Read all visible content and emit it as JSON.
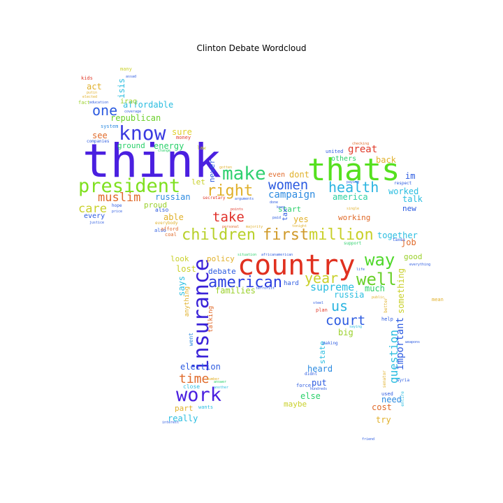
{
  "title": "Clinton Debate Wordcloud",
  "words": [
    {
      "text": "think",
      "color": "#4a1fe0"
    },
    {
      "text": "country",
      "color": "#e0301f"
    },
    {
      "text": "thats",
      "color": "#55e01f"
    },
    {
      "text": "president",
      "color": "#7fe01f"
    },
    {
      "text": "insurance",
      "color": "#3a22d8"
    },
    {
      "text": "work",
      "color": "#4a1fe0"
    },
    {
      "text": "know",
      "color": "#3a3ae0"
    },
    {
      "text": "make",
      "color": "#2fd070"
    },
    {
      "text": "american",
      "color": "#2b3fe0"
    },
    {
      "text": "children",
      "color": "#b8d02a"
    },
    {
      "text": "first",
      "color": "#d09a2a"
    },
    {
      "text": "million",
      "color": "#c9d02a"
    },
    {
      "text": "way",
      "color": "#4fd82a"
    },
    {
      "text": "well",
      "color": "#6ad02a"
    },
    {
      "text": "women",
      "color": "#2b5ae0"
    },
    {
      "text": "health",
      "color": "#2ab4e0"
    },
    {
      "text": "right",
      "color": "#e0b02a"
    },
    {
      "text": "court",
      "color": "#2b5ae0"
    },
    {
      "text": "us",
      "color": "#2ab4e0"
    },
    {
      "text": "year",
      "color": "#c9d02a"
    },
    {
      "text": "time",
      "color": "#e06a2a"
    },
    {
      "text": "take",
      "color": "#e0302a"
    },
    {
      "text": "muslim",
      "color": "#e06a2a"
    },
    {
      "text": "one",
      "color": "#2b5ae0"
    },
    {
      "text": "care",
      "color": "#c9d02a"
    },
    {
      "text": "question",
      "color": "#2abde0"
    },
    {
      "text": "supreme",
      "color": "#2abde0"
    },
    {
      "text": "campaign",
      "color": "#2b8ae0"
    },
    {
      "text": "great",
      "color": "#e03a2a"
    },
    {
      "text": "important",
      "color": "#2b5ae0"
    },
    {
      "text": "affordable",
      "color": "#2abde0"
    },
    {
      "text": "republican",
      "color": "#6ad02a"
    },
    {
      "text": "families",
      "color": "#9ad02a"
    },
    {
      "text": "debate",
      "color": "#2b5ae0"
    },
    {
      "text": "election",
      "color": "#2b5ae0"
    },
    {
      "text": "russian",
      "color": "#2b8ae0"
    },
    {
      "text": "energy",
      "color": "#2ad06a"
    },
    {
      "text": "sure",
      "color": "#e0d02a"
    },
    {
      "text": "see",
      "color": "#e06a2a"
    },
    {
      "text": "ground",
      "color": "#2ad06a"
    },
    {
      "text": "act",
      "color": "#e0b02a"
    },
    {
      "text": "isis",
      "color": "#2abde0"
    },
    {
      "text": "iraq",
      "color": "#9ad02a"
    },
    {
      "text": "policy",
      "color": "#e0b02a"
    },
    {
      "text": "look",
      "color": "#c9d02a"
    },
    {
      "text": "lost",
      "color": "#c9d02a"
    },
    {
      "text": "says",
      "color": "#2abde0"
    },
    {
      "text": "never",
      "color": "#2b5ae0"
    },
    {
      "text": "also",
      "color": "#2b5ae0"
    },
    {
      "text": "proud",
      "color": "#9ad02a"
    },
    {
      "text": "able",
      "color": "#e0b02a"
    },
    {
      "text": "every",
      "color": "#2b5ae0"
    },
    {
      "text": "let",
      "color": "#c9d02a"
    },
    {
      "text": "even",
      "color": "#e06a2a"
    },
    {
      "text": "dont",
      "color": "#e0b02a"
    },
    {
      "text": "im",
      "color": "#2b5ae0"
    },
    {
      "text": "back",
      "color": "#e0b02a"
    },
    {
      "text": "others",
      "color": "#2ad06a"
    },
    {
      "text": "america",
      "color": "#2ad0a0"
    },
    {
      "text": "worked",
      "color": "#2abde0"
    },
    {
      "text": "talk",
      "color": "#2abde0"
    },
    {
      "text": "new",
      "color": "#2b5ae0"
    },
    {
      "text": "start",
      "color": "#2ad06a"
    },
    {
      "text": "tax",
      "color": "#2b5ae0"
    },
    {
      "text": "yes",
      "color": "#e0b02a"
    },
    {
      "text": "working",
      "color": "#e06a2a"
    },
    {
      "text": "job",
      "color": "#e06a2a"
    },
    {
      "text": "together",
      "color": "#2abde0"
    },
    {
      "text": "good",
      "color": "#9ad02a"
    },
    {
      "text": "something",
      "color": "#c9d02a"
    },
    {
      "text": "much",
      "color": "#2ad06a"
    },
    {
      "text": "russia",
      "color": "#2abde0"
    },
    {
      "text": "big",
      "color": "#9ad02a"
    },
    {
      "text": "state",
      "color": "#2abde0"
    },
    {
      "text": "heard",
      "color": "#2b8ae0"
    },
    {
      "text": "put",
      "color": "#2b5ae0"
    },
    {
      "text": "else",
      "color": "#2ad06a"
    },
    {
      "text": "maybe",
      "color": "#c9d02a"
    },
    {
      "text": "cost",
      "color": "#e06a2a"
    },
    {
      "text": "need",
      "color": "#2b8ae0"
    },
    {
      "text": "try",
      "color": "#e0b02a"
    },
    {
      "text": "part",
      "color": "#e0b02a"
    },
    {
      "text": "really",
      "color": "#2abde0"
    },
    {
      "text": "also",
      "color": "#2b5ae0"
    },
    {
      "text": "hard",
      "color": "#2b5ae0"
    },
    {
      "text": "anything",
      "color": "#e0b02a"
    },
    {
      "text": "went",
      "color": "#2b8ae0"
    },
    {
      "text": "talking",
      "color": "#e06a2a"
    },
    {
      "text": "close",
      "color": "#2abde0"
    },
    {
      "text": "many",
      "color": "#c9d02a"
    },
    {
      "text": "kids",
      "color": "#e03a2a"
    },
    {
      "text": "fact",
      "color": "#9ad02a"
    },
    {
      "text": "system",
      "color": "#2b8ae0"
    },
    {
      "text": "companies",
      "color": "#2b5ae0"
    },
    {
      "text": "money",
      "color": "#e03a2a"
    },
    {
      "text": "law",
      "color": "#c9d02a"
    },
    {
      "text": "united",
      "color": "#2b5ae0"
    },
    {
      "text": "secretary",
      "color": "#e03a2a"
    },
    {
      "text": "hope",
      "color": "#2b5ae0"
    },
    {
      "text": "price",
      "color": "#2b5ae0"
    },
    {
      "text": "justice",
      "color": "#2b5ae0"
    },
    {
      "text": "afford",
      "color": "#e06a2a"
    },
    {
      "text": "coal",
      "color": "#e06a2a"
    },
    {
      "text": "everybody",
      "color": "#e0b02a"
    },
    {
      "text": "support",
      "color": "#2ad06a"
    },
    {
      "text": "respect",
      "color": "#2b5ae0"
    },
    {
      "text": "taxes",
      "color": "#2b5ae0"
    },
    {
      "text": "mean",
      "color": "#e0b02a"
    },
    {
      "text": "help",
      "color": "#2b5ae0"
    },
    {
      "text": "used",
      "color": "#2b5ae0"
    },
    {
      "text": "plan",
      "color": "#e03a2a"
    },
    {
      "text": "force",
      "color": "#2b5ae0"
    },
    {
      "text": "syria",
      "color": "#2b5ae0"
    },
    {
      "text": "senator",
      "color": "#e0b02a"
    },
    {
      "text": "entire",
      "color": "#2abde0"
    },
    {
      "text": "better",
      "color": "#e0b02a"
    },
    {
      "text": "didnt",
      "color": "#2b5ae0"
    },
    {
      "text": "making",
      "color": "#2b5ae0"
    },
    {
      "text": "saying",
      "color": "#2abde0"
    },
    {
      "text": "done",
      "color": "#2b5ae0"
    },
    {
      "text": "paid",
      "color": "#2b5ae0"
    },
    {
      "text": "points",
      "color": "#e03a2a"
    },
    {
      "text": "personal",
      "color": "#e06a2a"
    },
    {
      "text": "majority",
      "color": "#e0b02a"
    },
    {
      "text": "arguments",
      "color": "#2b5ae0"
    },
    {
      "text": "situation",
      "color": "#2ad06a"
    },
    {
      "text": "africanamerican",
      "color": "#2b5ae0"
    },
    {
      "text": "terrorist",
      "color": "#2b5ae0"
    },
    {
      "text": "number",
      "color": "#e0b02a"
    },
    {
      "text": "answer",
      "color": "#2ad06a"
    },
    {
      "text": "another",
      "color": "#2abde0"
    },
    {
      "text": "wants",
      "color": "#2abde0"
    },
    {
      "text": "interest",
      "color": "#2b5ae0"
    },
    {
      "text": "putin",
      "color": "#e0b02a"
    },
    {
      "text": "assad",
      "color": "#2b5ae0"
    },
    {
      "text": "elected",
      "color": "#e0b02a"
    },
    {
      "text": "education",
      "color": "#2b5ae0"
    },
    {
      "text": "coverage",
      "color": "#2b5ae0"
    },
    {
      "text": "gotten",
      "color": "#e0b02a"
    },
    {
      "text": "single",
      "color": "#e0b02a"
    },
    {
      "text": "checking",
      "color": "#e06a2a"
    },
    {
      "text": "weapons",
      "color": "#2b5ae0"
    },
    {
      "text": "paying",
      "color": "#2b5ae0"
    },
    {
      "text": "friend",
      "color": "#2b5ae0"
    },
    {
      "text": "everything",
      "color": "#2b5ae0"
    },
    {
      "text": "public",
      "color": "#e0b02a"
    },
    {
      "text": "steel",
      "color": "#2b5ae0"
    },
    {
      "text": "hundreds",
      "color": "#2b5ae0"
    },
    {
      "text": "tonight",
      "color": "#e0b02a"
    },
    {
      "text": "change",
      "color": "#2ad06a"
    },
    {
      "text": "keep",
      "color": "#2b5ae0"
    },
    {
      "text": "life",
      "color": "#2b5ae0"
    }
  ]
}
